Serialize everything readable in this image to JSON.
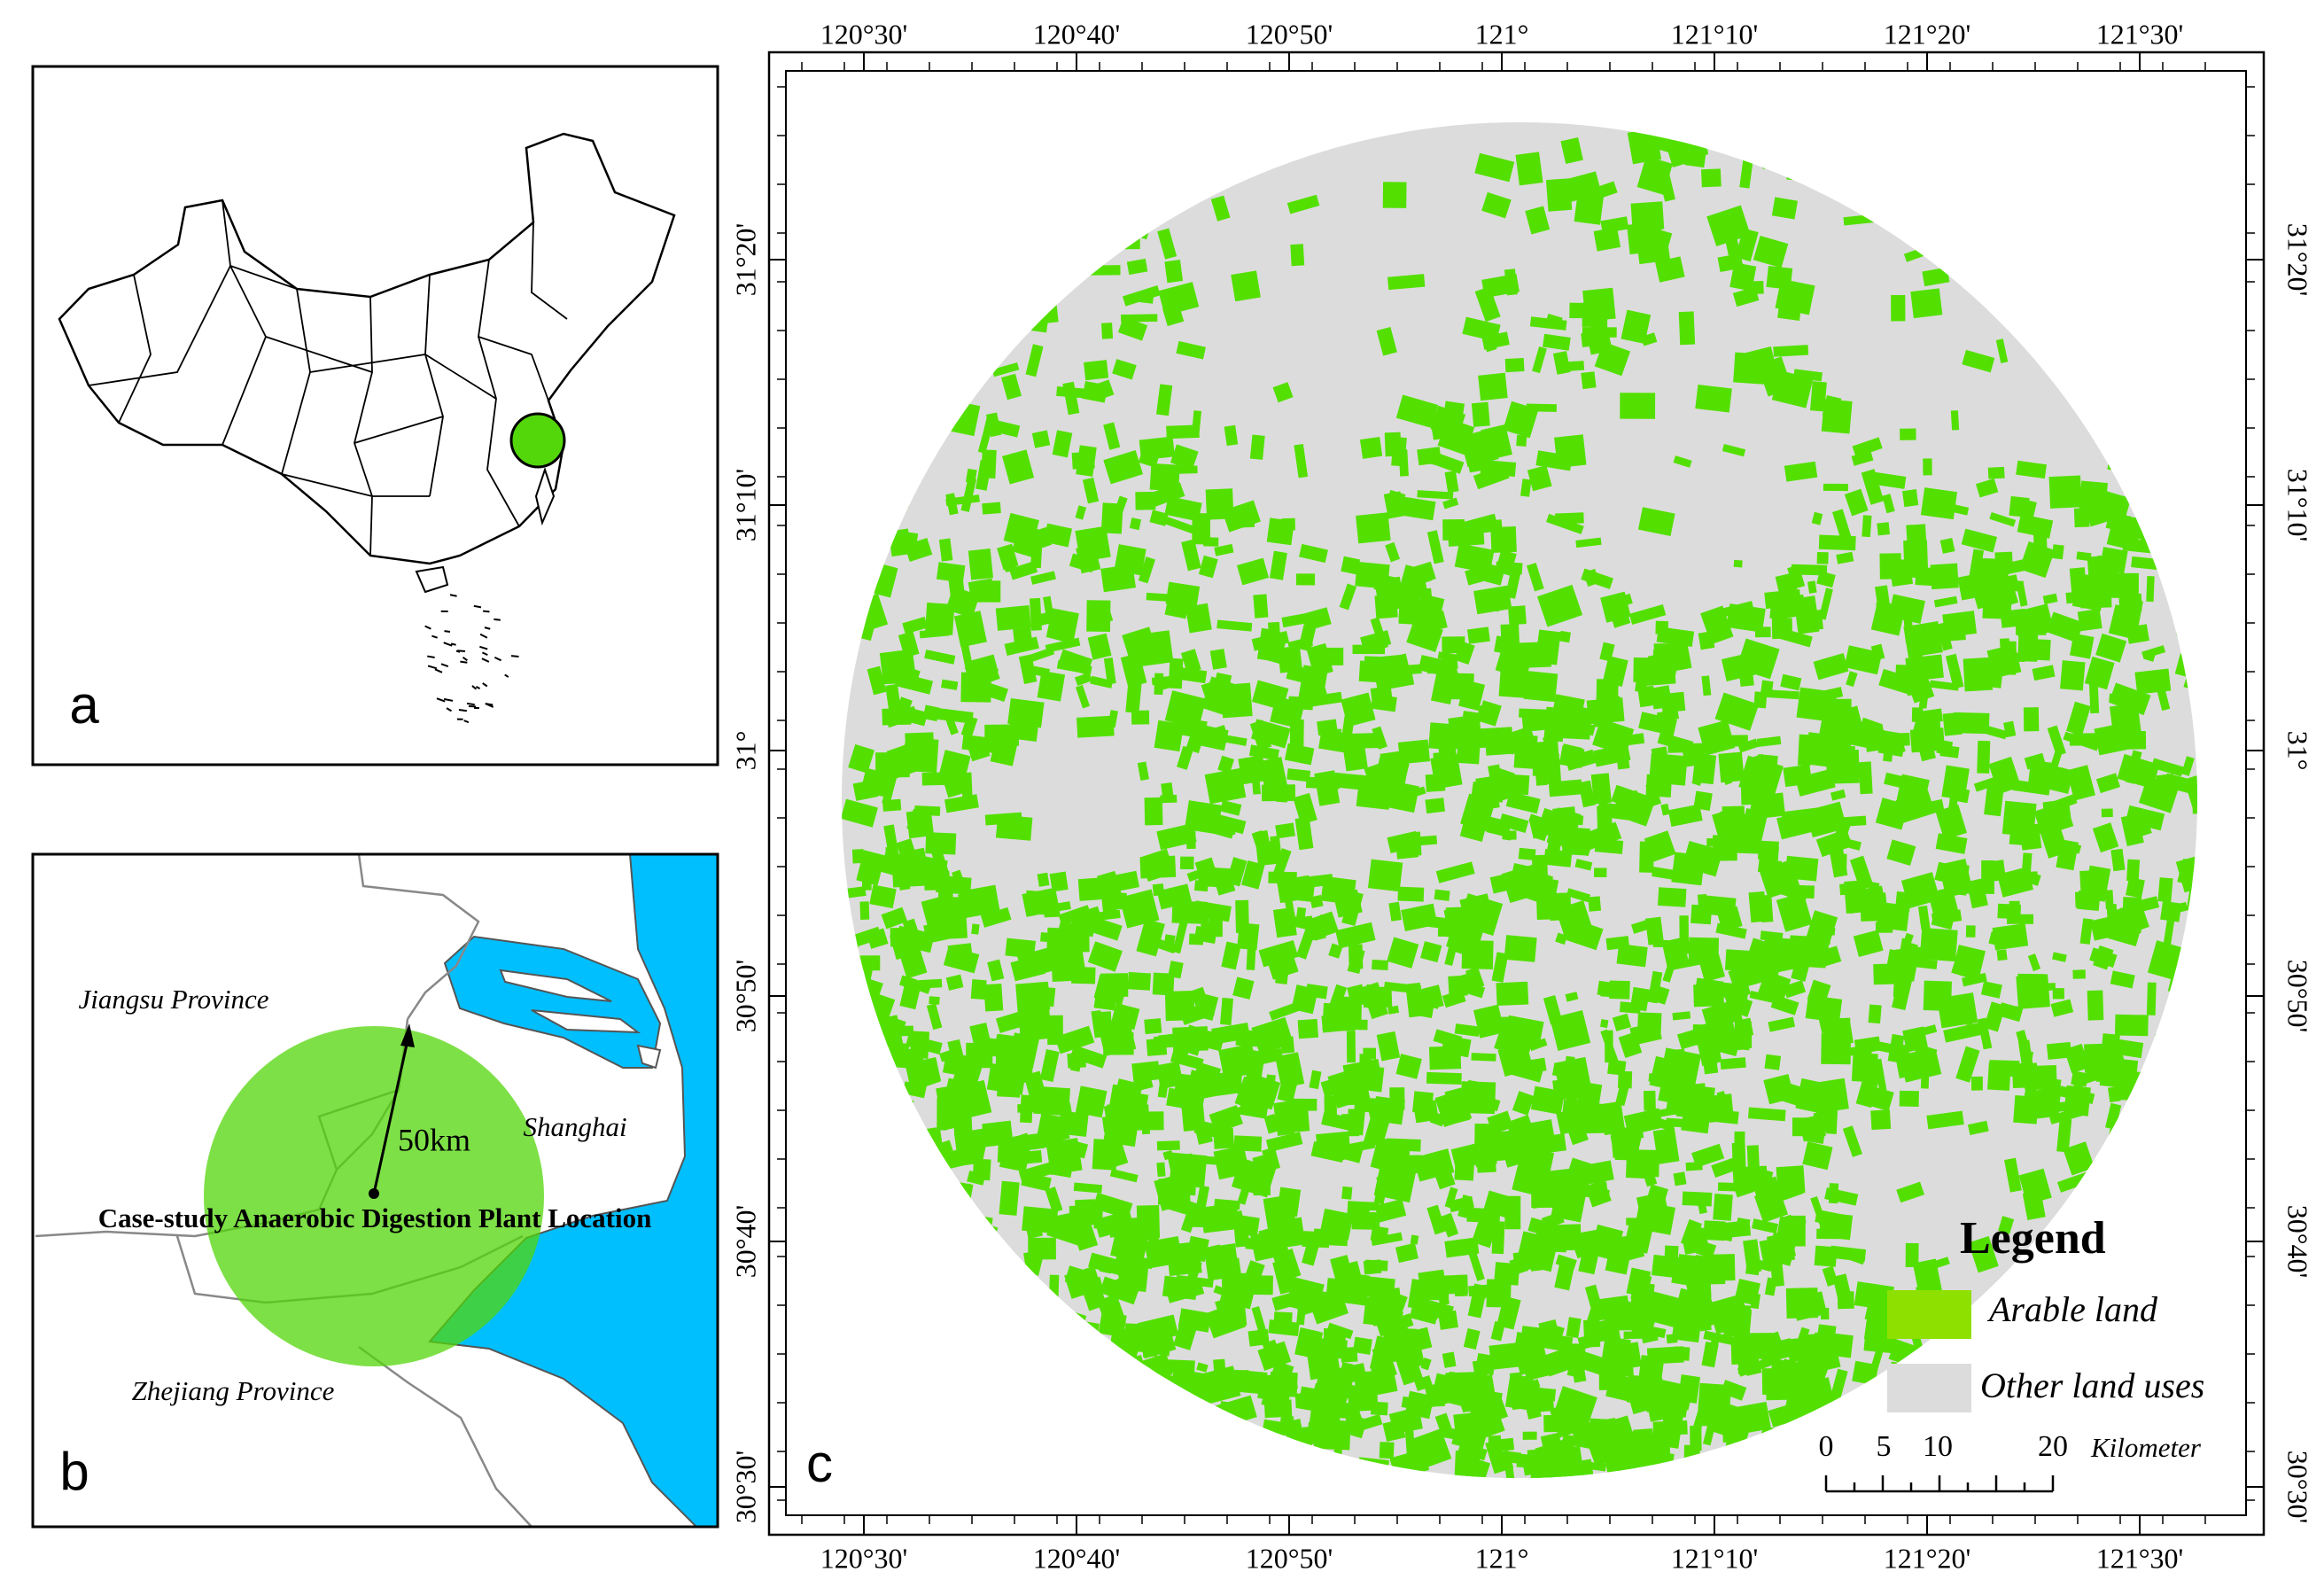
{
  "panel_a": {
    "label": "a"
  },
  "panel_b": {
    "label": "b",
    "jiangsu": "Jiangsu Province",
    "shanghai": "Shanghai",
    "zhejiang": "Zhejiang Province",
    "radius": "50km",
    "plant": "Case-study Anaerobic Digestion Plant Location"
  },
  "panel_c": {
    "label": "c",
    "lon_ticks": [
      "120°30'",
      "120°40'",
      "120°50'",
      "121°",
      "121°10'",
      "121°20'",
      "121°30'"
    ],
    "lat_ticks": [
      "31°20'",
      "31°10'",
      "31°",
      "30°50'",
      "30°40'",
      "30°30'"
    ],
    "legend": {
      "title": "Legend",
      "items": [
        "Arable land",
        "Other land uses"
      ]
    },
    "scale_bar": {
      "labels": [
        "0",
        "5",
        "10",
        "20"
      ],
      "unit": "Kilometer"
    }
  }
}
